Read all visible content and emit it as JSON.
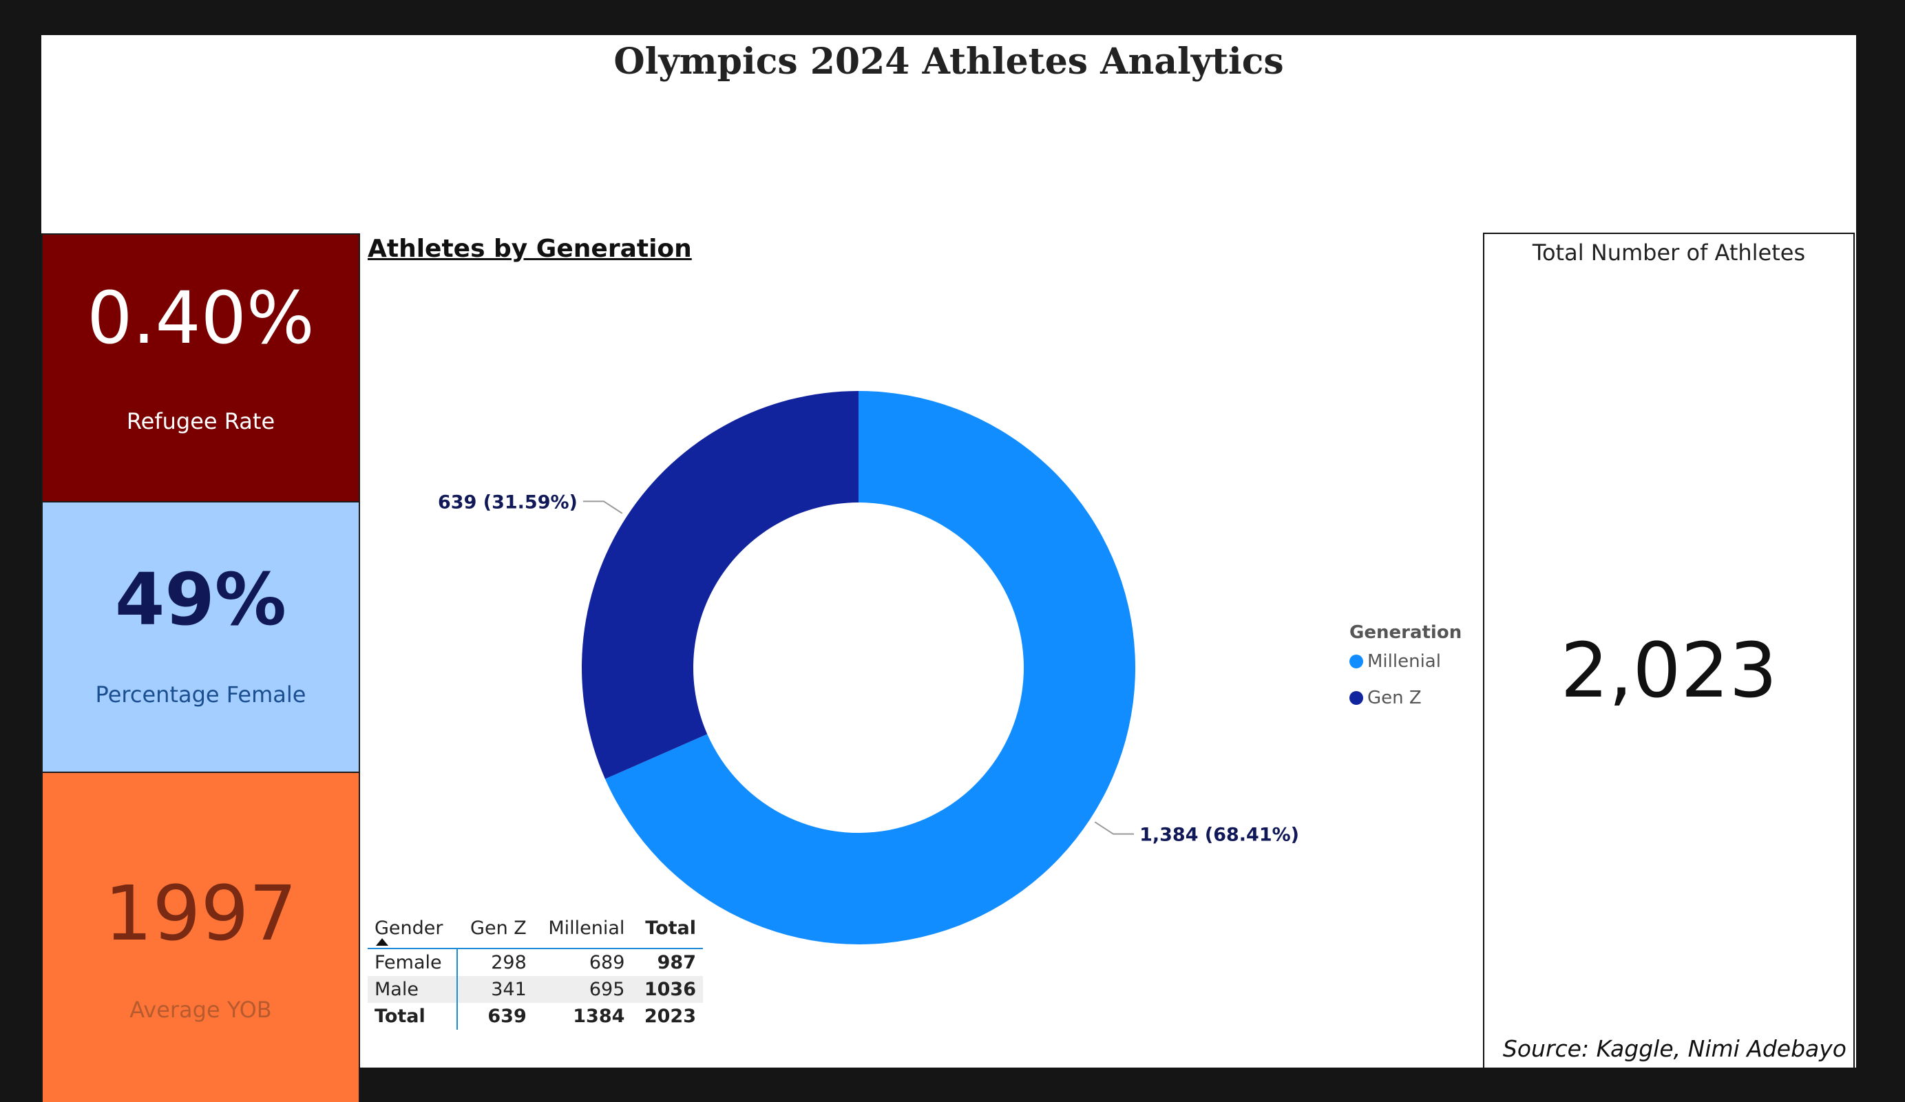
{
  "title": "Olympics 2024 Athletes Analytics",
  "kpis": {
    "refugee": {
      "value": "0.40%",
      "label": "Refugee Rate",
      "bg": "#7a0000"
    },
    "female": {
      "value": "49%",
      "label": "Percentage Female",
      "bg": "#a3ceff"
    },
    "yob": {
      "value": "1997",
      "label": "Average YOB",
      "bg": "#ff7538"
    }
  },
  "chart_heading": "Athletes by Generation",
  "chart_data": {
    "type": "pie",
    "donut": true,
    "title": "Athletes by Generation",
    "legend_title": "Generation",
    "legend_position": "right",
    "categories": [
      "Millenial",
      "Gen Z"
    ],
    "values": [
      1384,
      639
    ],
    "percents": [
      68.41,
      31.59
    ],
    "colors": [
      "#118dff",
      "#12239e"
    ],
    "data_labels": [
      "1,384 (68.41%)",
      "639 (31.59%)"
    ]
  },
  "matrix": {
    "headers": [
      "Gender",
      "Gen Z",
      "Millenial",
      "Total"
    ],
    "rows": [
      [
        "Female",
        "298",
        "689",
        "987"
      ],
      [
        "Male",
        "341",
        "695",
        "1036"
      ]
    ],
    "total_row": [
      "Total",
      "639",
      "1384",
      "2023"
    ]
  },
  "total_card": {
    "title": "Total Number of Athletes",
    "value": "2,023"
  },
  "source": "Source: Kaggle, Nimi Adebayo"
}
